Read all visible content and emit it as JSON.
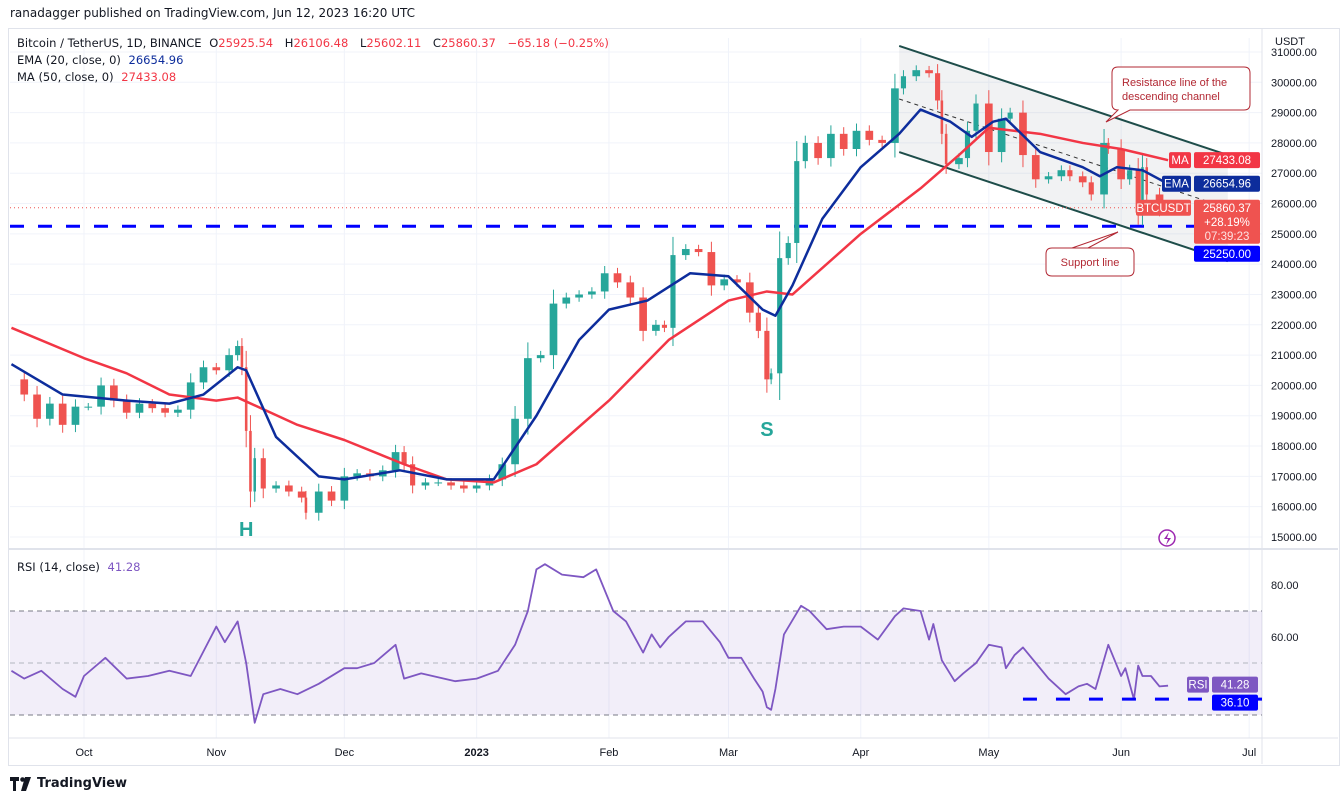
{
  "publish_line": "ranadagger published on TradingView.com, Jun 12, 2023 16:20 UTC",
  "legend": {
    "symbol": "Bitcoin / TetherUS, 1D, BINANCE",
    "o_label": "O",
    "o": "25925.54",
    "h_label": "H",
    "h": "26106.48",
    "l_label": "L",
    "l": "25602.11",
    "c_label": "C",
    "c": "25860.37",
    "change": "−65.18 (−0.25%)",
    "ema_label": "EMA (20, close, 0)",
    "ema_value": "26654.96",
    "ma_label": "MA (50, close, 0)",
    "ma_value": "27433.08",
    "rsi_label": "RSI (14, close)",
    "rsi_value": "41.28"
  },
  "footer": {
    "brand": "TradingView"
  },
  "colors": {
    "up": "#26a69a",
    "down": "#ef5350",
    "ema": "#0d2d9c",
    "ma": "#f23645",
    "rsi": "#7e57c2",
    "support": "#0000ff",
    "channel": "#1e4d4a"
  },
  "chart_data": {
    "type": "candlestick",
    "currency_label": "USDT",
    "x_axis": {
      "origin_date": "2022-10-01",
      "unit": "days",
      "range": [
        -17,
        275
      ],
      "ticks": [
        {
          "day": 0,
          "label": "Oct"
        },
        {
          "day": 31,
          "label": "Nov"
        },
        {
          "day": 61,
          "label": "Dec"
        },
        {
          "day": 92,
          "label": "2023"
        },
        {
          "day": 123,
          "label": "Feb"
        },
        {
          "day": 151,
          "label": "Mar"
        },
        {
          "day": 182,
          "label": "Apr"
        },
        {
          "day": 212,
          "label": "May"
        },
        {
          "day": 243,
          "label": "Jun"
        },
        {
          "day": 273,
          "label": "Jul"
        }
      ]
    },
    "price_axis": {
      "range": [
        15000,
        31000
      ],
      "ticks": [
        "15000.00",
        "16000.00",
        "17000.00",
        "18000.00",
        "19000.00",
        "20000.00",
        "21000.00",
        "22000.00",
        "23000.00",
        "24000.00",
        "25000.00",
        "26000.00",
        "27000.00",
        "28000.00",
        "29000.00",
        "30000.00",
        "31000.00"
      ]
    },
    "close": [
      [
        -17,
        20200
      ],
      [
        -14,
        19700
      ],
      [
        -11,
        18900
      ],
      [
        -8,
        19400
      ],
      [
        -5,
        18700
      ],
      [
        -2,
        19300
      ],
      [
        1,
        19300
      ],
      [
        4,
        20000
      ],
      [
        7,
        19500
      ],
      [
        10,
        19100
      ],
      [
        13,
        19400
      ],
      [
        16,
        19250
      ],
      [
        19,
        19100
      ],
      [
        22,
        19200
      ],
      [
        25,
        20100
      ],
      [
        28,
        20600
      ],
      [
        31,
        20500
      ],
      [
        34,
        21000
      ],
      [
        36,
        21300
      ],
      [
        37,
        20600
      ],
      [
        38,
        18500
      ],
      [
        39,
        16500
      ],
      [
        40,
        17600
      ],
      [
        42,
        16600
      ],
      [
        45,
        16700
      ],
      [
        48,
        16500
      ],
      [
        51,
        16300
      ],
      [
        52,
        15800
      ],
      [
        55,
        16500
      ],
      [
        58,
        16200
      ],
      [
        61,
        17000
      ],
      [
        64,
        17100
      ],
      [
        67,
        17000
      ],
      [
        70,
        17200
      ],
      [
        73,
        17800
      ],
      [
        75,
        17400
      ],
      [
        77,
        16700
      ],
      [
        80,
        16800
      ],
      [
        83,
        16800
      ],
      [
        86,
        16700
      ],
      [
        89,
        16600
      ],
      [
        92,
        16700
      ],
      [
        95,
        16900
      ],
      [
        98,
        17400
      ],
      [
        101,
        18900
      ],
      [
        104,
        20900
      ],
      [
        107,
        21000
      ],
      [
        110,
        22700
      ],
      [
        113,
        22900
      ],
      [
        116,
        23000
      ],
      [
        119,
        23100
      ],
      [
        122,
        23700
      ],
      [
        125,
        23400
      ],
      [
        128,
        22900
      ],
      [
        131,
        21800
      ],
      [
        134,
        22000
      ],
      [
        136,
        21900
      ],
      [
        138,
        24300
      ],
      [
        141,
        24500
      ],
      [
        144,
        24400
      ],
      [
        147,
        23300
      ],
      [
        150,
        23500
      ],
      [
        153,
        23400
      ],
      [
        156,
        22400
      ],
      [
        158,
        21800
      ],
      [
        160,
        20200
      ],
      [
        161,
        20400
      ],
      [
        163,
        24200
      ],
      [
        165,
        24700
      ],
      [
        167,
        27400
      ],
      [
        169,
        28000
      ],
      [
        172,
        27500
      ],
      [
        175,
        28300
      ],
      [
        178,
        27800
      ],
      [
        181,
        28400
      ],
      [
        184,
        28100
      ],
      [
        187,
        28000
      ],
      [
        190,
        29800
      ],
      [
        192,
        30200
      ],
      [
        195,
        30400
      ],
      [
        198,
        30300
      ],
      [
        200,
        29400
      ],
      [
        201,
        28300
      ],
      [
        202,
        27300
      ],
      [
        205,
        27500
      ],
      [
        207,
        28400
      ],
      [
        209,
        29300
      ],
      [
        212,
        27700
      ],
      [
        215,
        28800
      ],
      [
        217,
        29000
      ],
      [
        220,
        27600
      ],
      [
        223,
        26800
      ],
      [
        226,
        26900
      ],
      [
        229,
        27100
      ],
      [
        231,
        26900
      ],
      [
        234,
        26700
      ],
      [
        236,
        26300
      ],
      [
        239,
        28000
      ],
      [
        240,
        27800
      ],
      [
        243,
        26800
      ],
      [
        245,
        27100
      ],
      [
        247,
        25700
      ],
      [
        248,
        27200
      ],
      [
        249,
        26300
      ],
      [
        252,
        25800
      ],
      [
        254,
        25860
      ]
    ],
    "ema20": [
      [
        -17,
        20700
      ],
      [
        -5,
        19700
      ],
      [
        10,
        19500
      ],
      [
        20,
        19400
      ],
      [
        28,
        19700
      ],
      [
        36,
        20600
      ],
      [
        38,
        20500
      ],
      [
        45,
        18300
      ],
      [
        55,
        17000
      ],
      [
        61,
        16900
      ],
      [
        74,
        17200
      ],
      [
        85,
        16900
      ],
      [
        96,
        16900
      ],
      [
        106,
        19000
      ],
      [
        116,
        21500
      ],
      [
        123,
        22500
      ],
      [
        132,
        22800
      ],
      [
        142,
        23700
      ],
      [
        151,
        23600
      ],
      [
        159,
        22500
      ],
      [
        162,
        22300
      ],
      [
        166,
        23300
      ],
      [
        173,
        25500
      ],
      [
        182,
        27200
      ],
      [
        191,
        28300
      ],
      [
        196,
        29100
      ],
      [
        203,
        28700
      ],
      [
        208,
        28200
      ],
      [
        213,
        28700
      ],
      [
        216,
        28800
      ],
      [
        224,
        27700
      ],
      [
        234,
        27200
      ],
      [
        238,
        26900
      ],
      [
        242,
        27200
      ],
      [
        248,
        27100
      ],
      [
        254,
        26650
      ]
    ],
    "ma50": [
      [
        -17,
        21900
      ],
      [
        0,
        20900
      ],
      [
        10,
        20400
      ],
      [
        20,
        19700
      ],
      [
        31,
        19500
      ],
      [
        36,
        19600
      ],
      [
        50,
        18700
      ],
      [
        61,
        18200
      ],
      [
        75,
        17400
      ],
      [
        85,
        16900
      ],
      [
        96,
        16800
      ],
      [
        106,
        17400
      ],
      [
        123,
        19500
      ],
      [
        137,
        21500
      ],
      [
        151,
        22800
      ],
      [
        160,
        23100
      ],
      [
        166,
        23000
      ],
      [
        182,
        25000
      ],
      [
        196,
        26500
      ],
      [
        205,
        27600
      ],
      [
        212,
        28500
      ],
      [
        224,
        28300
      ],
      [
        234,
        28000
      ],
      [
        243,
        27800
      ],
      [
        254,
        27430
      ]
    ],
    "rsi": [
      [
        -17,
        47
      ],
      [
        -14,
        44
      ],
      [
        -10,
        47
      ],
      [
        -5,
        40
      ],
      [
        -2,
        37
      ],
      [
        0,
        45
      ],
      [
        5,
        52
      ],
      [
        10,
        44
      ],
      [
        15,
        45
      ],
      [
        20,
        47
      ],
      [
        25,
        45
      ],
      [
        31,
        64
      ],
      [
        33,
        58
      ],
      [
        36,
        66
      ],
      [
        38,
        50
      ],
      [
        40,
        27
      ],
      [
        42,
        38
      ],
      [
        46,
        40
      ],
      [
        50,
        38
      ],
      [
        55,
        42
      ],
      [
        61,
        48
      ],
      [
        64,
        48
      ],
      [
        68,
        50
      ],
      [
        73,
        57
      ],
      [
        75,
        44
      ],
      [
        79,
        46
      ],
      [
        87,
        43
      ],
      [
        92,
        44
      ],
      [
        97,
        47
      ],
      [
        99,
        52
      ],
      [
        101,
        57
      ],
      [
        104,
        70
      ],
      [
        106,
        86
      ],
      [
        108,
        88
      ],
      [
        112,
        84
      ],
      [
        117,
        83
      ],
      [
        120,
        86
      ],
      [
        124,
        70
      ],
      [
        127,
        66
      ],
      [
        131,
        54
      ],
      [
        133,
        61
      ],
      [
        135,
        56
      ],
      [
        137,
        60
      ],
      [
        141,
        66
      ],
      [
        145,
        66
      ],
      [
        149,
        58
      ],
      [
        151,
        52
      ],
      [
        154,
        52
      ],
      [
        157,
        44
      ],
      [
        159,
        39
      ],
      [
        160,
        33
      ],
      [
        161,
        32
      ],
      [
        162,
        40
      ],
      [
        164,
        61
      ],
      [
        168,
        72
      ],
      [
        170,
        70
      ],
      [
        174,
        63
      ],
      [
        178,
        64
      ],
      [
        182,
        64
      ],
      [
        186,
        59
      ],
      [
        190,
        68
      ],
      [
        192,
        71
      ],
      [
        196,
        70
      ],
      [
        198,
        59
      ],
      [
        199,
        65
      ],
      [
        201,
        51
      ],
      [
        204,
        43
      ],
      [
        206,
        46
      ],
      [
        209,
        50
      ],
      [
        212,
        57
      ],
      [
        215,
        56
      ],
      [
        216,
        48
      ],
      [
        218,
        53
      ],
      [
        220,
        56
      ],
      [
        223,
        50
      ],
      [
        226,
        44
      ],
      [
        230,
        38
      ],
      [
        233,
        41
      ],
      [
        235,
        42
      ],
      [
        237,
        40
      ],
      [
        240,
        57
      ],
      [
        243,
        45
      ],
      [
        244,
        48
      ],
      [
        246,
        36
      ],
      [
        247,
        49
      ],
      [
        248,
        45
      ],
      [
        250,
        45
      ],
      [
        252,
        41
      ],
      [
        254,
        41.28
      ]
    ],
    "rsi_axis": {
      "range": [
        20,
        95
      ],
      "ticks": [
        "60.00",
        "80.00"
      ],
      "band": [
        30,
        70
      ],
      "mid": 50
    },
    "channel": {
      "upper": [
        [
          191,
          31200
        ],
        [
          268,
          27600
        ]
      ],
      "lower": [
        [
          191,
          27700
        ],
        [
          268,
          24100
        ]
      ]
    },
    "support_level": 25250,
    "rsi_support_level": 36.1,
    "rsi_support_start_day": 220,
    "annotations": {
      "resistance": "Resistance line of the descending channel",
      "support": "Support line",
      "head": "H",
      "shoulder": "S"
    },
    "tags": {
      "ma": {
        "name": "MA",
        "value": "27433.08"
      },
      "ema": {
        "name": "EMA",
        "value": "26654.96"
      },
      "price": {
        "name": "BTCUSDT",
        "value": "25860.37",
        "change": "+28.19%",
        "countdown": "07:39:23"
      },
      "support": {
        "value": "25250.00"
      },
      "rsi": {
        "name": "RSI",
        "value": "41.28"
      },
      "rsi_support": {
        "value": "36.10"
      }
    }
  }
}
